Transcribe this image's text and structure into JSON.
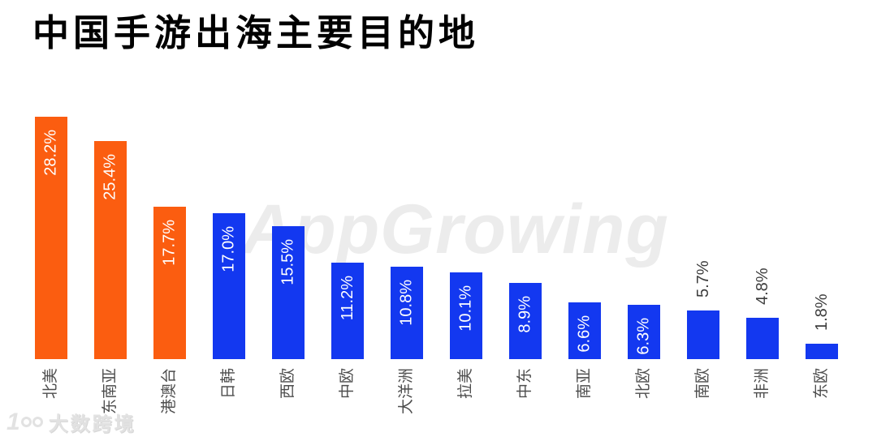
{
  "title": "中国手游出海主要目的地",
  "watermark_text": "AppGrowing",
  "brand": {
    "logo_text": "大数跨境",
    "icon": "logo-100-glasses-icon"
  },
  "colors": {
    "orange": "#FB5D10",
    "blue": "#1338F0",
    "title": "#000000",
    "value_label_inside": "#FFFFFF",
    "value_label_outside": "#3D3D3D",
    "axis_label": "#4D4D4D",
    "watermark": "#ECECEC",
    "brand_watermark": "#E2E2E2",
    "background": "#FFFFFF"
  },
  "chart_data": {
    "type": "bar",
    "title": "中国手游出海主要目的地",
    "categories": [
      "北美",
      "东南亚",
      "港澳台",
      "日韩",
      "西欧",
      "中欧",
      "大洋洲",
      "拉美",
      "中东",
      "南亚",
      "北欧",
      "南欧",
      "非洲",
      "东欧"
    ],
    "values": [
      28.2,
      25.4,
      17.7,
      17.0,
      15.5,
      11.2,
      10.8,
      10.1,
      8.9,
      6.6,
      6.3,
      5.7,
      4.8,
      1.8
    ],
    "value_labels": [
      "28.2%",
      "25.4%",
      "17.7%",
      "17.0%",
      "15.5%",
      "11.2%",
      "10.8%",
      "10.1%",
      "8.9%",
      "6.6%",
      "6.3%",
      "5.7%",
      "4.8%",
      "1.8%"
    ],
    "bar_colors": [
      "orange",
      "orange",
      "orange",
      "blue",
      "blue",
      "blue",
      "blue",
      "blue",
      "blue",
      "blue",
      "blue",
      "blue",
      "blue",
      "blue"
    ],
    "label_placements": [
      "inside",
      "inside",
      "inside",
      "inside",
      "inside",
      "inside",
      "inside",
      "inside",
      "inside",
      "inside",
      "inside",
      "outside",
      "outside",
      "outside"
    ],
    "value_label_rotation": -90,
    "category_label_rotation": -90,
    "xlabel": "",
    "ylabel": "",
    "ylim": [
      0,
      30
    ],
    "grid": false,
    "legend": null
  }
}
